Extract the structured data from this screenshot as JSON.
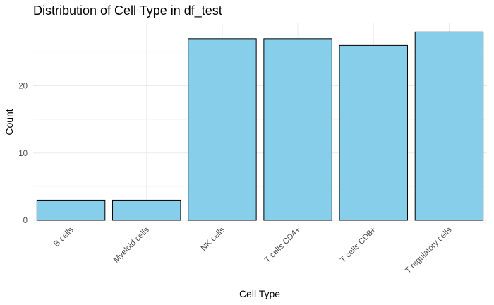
{
  "chart_data": {
    "type": "bar",
    "title": "Distribution of Cell Type in df_test",
    "xlabel": "Cell Type",
    "ylabel": "Count",
    "categories": [
      "B cells",
      "Myeloid cells",
      "NK cells",
      "T cells CD4+",
      "T cells CD8+",
      "T regulatory cells"
    ],
    "values": [
      3,
      3,
      27,
      27,
      26,
      28
    ],
    "ylim": [
      0,
      29.4
    ],
    "yticks": [
      0,
      10,
      20
    ],
    "bar_color": "#87CEEB",
    "bar_outline": "#000000",
    "grid": true,
    "legend": "none"
  }
}
